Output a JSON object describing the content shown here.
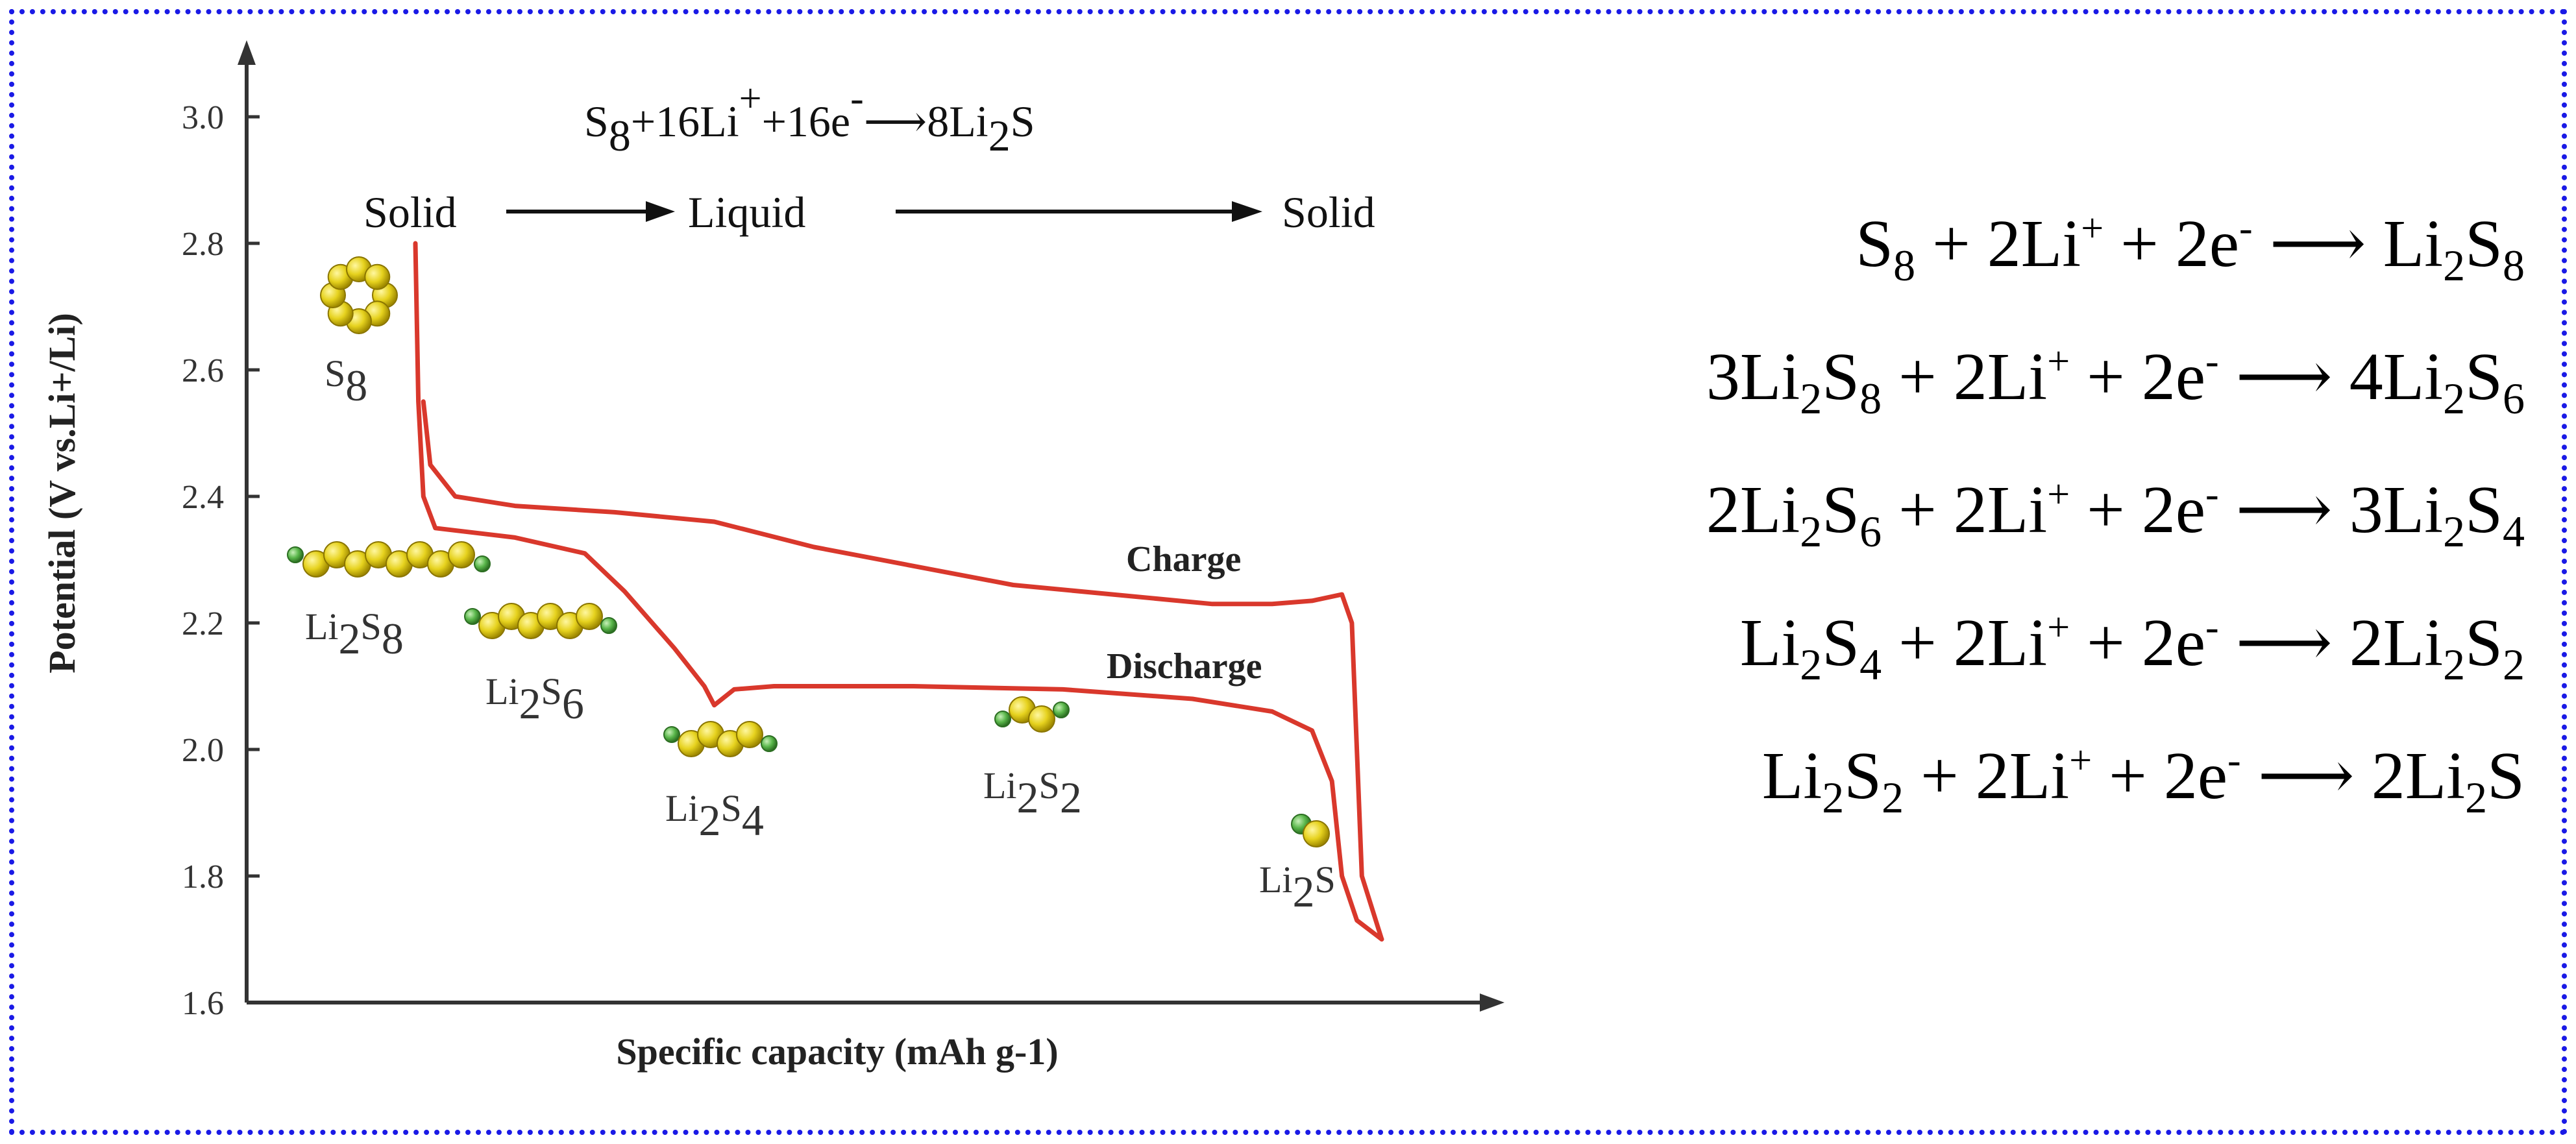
{
  "colors": {
    "border": "#1a1ae6",
    "curve": "#d9382c",
    "sulfur": "#e6d21e",
    "lithium": "#59b64a",
    "axis": "#333333"
  },
  "chart_data": {
    "type": "line",
    "xlabel": "Specific capacity (mAh g-1)",
    "ylabel": "Potential (V vs.Li+/Li)",
    "ylim": [
      1.6,
      3.05
    ],
    "yticks": [
      "3.0",
      "2.8",
      "2.6",
      "2.4",
      "2.2",
      "2.0",
      "1.8",
      "1.6"
    ],
    "x_unlabeled": true,
    "series": [
      {
        "name": "Discharge",
        "points": [
          [
            0.0,
            2.8
          ],
          [
            0.003,
            2.55
          ],
          [
            0.008,
            2.4
          ],
          [
            0.02,
            2.35
          ],
          [
            0.1,
            2.335
          ],
          [
            0.17,
            2.31
          ],
          [
            0.21,
            2.25
          ],
          [
            0.26,
            2.16
          ],
          [
            0.29,
            2.1
          ],
          [
            0.3,
            2.07
          ],
          [
            0.32,
            2.095
          ],
          [
            0.36,
            2.1
          ],
          [
            0.5,
            2.1
          ],
          [
            0.65,
            2.095
          ],
          [
            0.78,
            2.08
          ],
          [
            0.86,
            2.06
          ],
          [
            0.9,
            2.03
          ],
          [
            0.92,
            1.95
          ],
          [
            0.93,
            1.8
          ],
          [
            0.945,
            1.73
          ],
          [
            0.97,
            1.7
          ]
        ]
      },
      {
        "name": "Charge",
        "points": [
          [
            0.97,
            1.7
          ],
          [
            0.95,
            1.8
          ],
          [
            0.945,
            2.0
          ],
          [
            0.94,
            2.2
          ],
          [
            0.93,
            2.245
          ],
          [
            0.9,
            2.235
          ],
          [
            0.86,
            2.23
          ],
          [
            0.8,
            2.23
          ],
          [
            0.7,
            2.245
          ],
          [
            0.6,
            2.26
          ],
          [
            0.5,
            2.29
          ],
          [
            0.4,
            2.32
          ],
          [
            0.3,
            2.36
          ],
          [
            0.2,
            2.375
          ],
          [
            0.1,
            2.385
          ],
          [
            0.04,
            2.4
          ],
          [
            0.015,
            2.45
          ],
          [
            0.008,
            2.55
          ]
        ]
      }
    ],
    "header": {
      "reaction_parts": [
        "S",
        "8",
        "+16Li",
        "+",
        "+16e",
        "-",
        "⟶8Li",
        "2",
        "S"
      ],
      "phase_solid_1": "Solid",
      "phase_liquid": "Liquid",
      "phase_solid_2": "Solid"
    },
    "curve_labels": {
      "charge": "Charge",
      "discharge": "Discharge"
    },
    "species": [
      {
        "id": "s8",
        "parts": [
          "S",
          "8"
        ]
      },
      {
        "id": "li2s8",
        "parts": [
          "Li",
          "2",
          "S",
          "8"
        ]
      },
      {
        "id": "li2s6",
        "parts": [
          "Li",
          "2",
          "S",
          "6"
        ]
      },
      {
        "id": "li2s4",
        "parts": [
          "Li",
          "2",
          "S",
          "4"
        ]
      },
      {
        "id": "li2s2",
        "parts": [
          "Li",
          "2",
          "S",
          "2"
        ]
      },
      {
        "id": "li2s",
        "parts": [
          "Li",
          "2",
          "S"
        ]
      }
    ]
  },
  "equations": [
    {
      "id": "eq1",
      "parts": [
        "S",
        "8",
        " + 2Li",
        "+",
        " + 2e",
        "-",
        " ⟶ Li",
        "2",
        "S",
        "8"
      ]
    },
    {
      "id": "eq2",
      "parts": [
        "3Li",
        "2",
        "S",
        "8",
        " + 2Li",
        "+",
        " + 2e",
        "-",
        " ⟶ 4Li",
        "2",
        "S",
        "6"
      ]
    },
    {
      "id": "eq3",
      "parts": [
        "2Li",
        "2",
        "S",
        "6",
        " + 2Li",
        "+",
        " + 2e",
        "-",
        " ⟶ 3Li",
        "2",
        "S",
        "4"
      ]
    },
    {
      "id": "eq4",
      "parts": [
        "Li",
        "2",
        "S",
        "4",
        " + 2Li",
        "+",
        " + 2e",
        "-",
        " ⟶ 2Li",
        "2",
        "S",
        "2"
      ]
    },
    {
      "id": "eq5",
      "parts": [
        "Li",
        "2",
        "S",
        "2",
        " + 2Li",
        "+",
        " + 2e",
        "-",
        " ⟶ 2Li",
        "2",
        "S"
      ]
    }
  ]
}
